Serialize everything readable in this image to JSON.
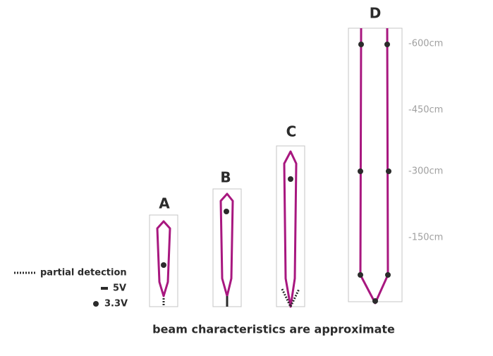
{
  "labels": [
    "A",
    "B",
    "C",
    "D"
  ],
  "scale": [
    "-600cm",
    "-450cm",
    "-300cm",
    "-150cm"
  ],
  "legend": {
    "partial": "partial detection",
    "five": "5V",
    "three": "3.3V"
  },
  "caption": "beam characteristics are approximate"
}
